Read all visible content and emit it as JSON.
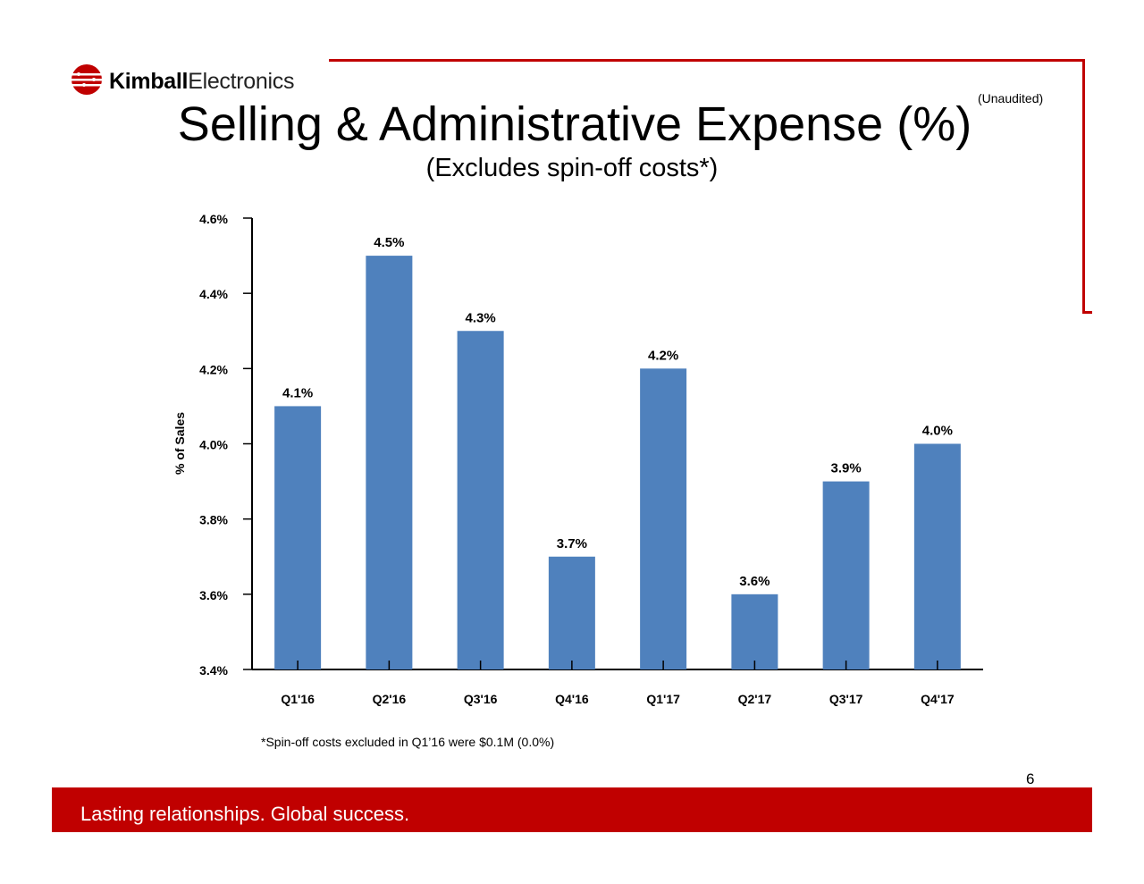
{
  "colors": {
    "accent": "#c00000",
    "bar": "#4f81bd"
  },
  "logo": {
    "name_bold": "Kimball",
    "name_light": "Electronics",
    "icon": "kimball-globe-logo"
  },
  "header": {
    "unaudited": "(Unaudited)",
    "title": "Selling & Administrative Expense (%)",
    "subtitle": "(Excludes spin-off costs*)"
  },
  "chart_data": {
    "type": "bar",
    "categories": [
      "Q1'16",
      "Q2'16",
      "Q3'16",
      "Q4'16",
      "Q1'17",
      "Q2'17",
      "Q3'17",
      "Q4'17"
    ],
    "values": [
      4.1,
      4.5,
      4.3,
      3.7,
      4.2,
      3.6,
      3.9,
      4.0
    ],
    "value_labels": [
      "4.1%",
      "4.5%",
      "4.3%",
      "3.7%",
      "4.2%",
      "3.6%",
      "3.9%",
      "4.0%"
    ],
    "ylabel": "% of Sales",
    "ylim": [
      3.4,
      4.6
    ],
    "yticks": [
      3.4,
      3.6,
      3.8,
      4.0,
      4.2,
      4.4,
      4.6
    ],
    "ytick_labels": [
      "3.4%",
      "3.6%",
      "3.8%",
      "4.0%",
      "4.2%",
      "4.4%",
      "4.6%"
    ],
    "grid": false,
    "legend": "none"
  },
  "footnote": "*Spin-off costs excluded in Q1’16 were $0.1M (0.0%)",
  "page_number": "6",
  "footer": {
    "tagline": "Lasting relationships. Global success."
  }
}
